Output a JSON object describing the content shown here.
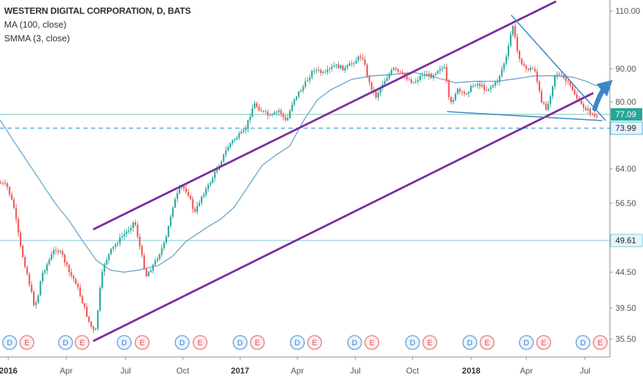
{
  "legend": {
    "title": "WESTERN DIGITAL CORPORATION, D, BATS",
    "ma": "MA (100, close)",
    "smma": "SMMA (3, close)"
  },
  "chart_data": {
    "type": "candlestick",
    "price_axis_labels": [
      "110.00",
      "90.00",
      "80.00",
      "73.99",
      "64.00",
      "56.50",
      "49.61",
      "44.50",
      "39.50",
      "35.50"
    ],
    "price_levels": [
      {
        "label": "110.00",
        "value": 110.0
      },
      {
        "label": "90.00",
        "value": 90.0
      },
      {
        "label": "80.00",
        "value": 80.0
      },
      {
        "label": "64.00",
        "value": 64.0
      },
      {
        "label": "56.50",
        "value": 56.5
      },
      {
        "label": "44.50",
        "value": 44.5
      },
      {
        "label": "39.50",
        "value": 39.5
      },
      {
        "label": "35.50",
        "value": 35.5
      }
    ],
    "time_labels": [
      {
        "label": "2016",
        "year": true
      },
      {
        "label": "Apr",
        "year": false
      },
      {
        "label": "Jul",
        "year": false
      },
      {
        "label": "Oct",
        "year": false
      },
      {
        "label": "2017",
        "year": true
      },
      {
        "label": "Apr",
        "year": false
      },
      {
        "label": "Jul",
        "year": false
      },
      {
        "label": "Oct",
        "year": false
      },
      {
        "label": "2018",
        "year": true
      },
      {
        "label": "Apr",
        "year": false
      },
      {
        "label": "Jul",
        "year": false
      }
    ],
    "current_price": {
      "label": "77.09",
      "value": 77.09,
      "color": "#26a69a"
    },
    "dashed_level": {
      "label": "73.99",
      "value": 73.99,
      "color": "#4fb0d8"
    },
    "horizontal_level": {
      "label": "49.61",
      "value": 49.61,
      "color": "#7fc8d8"
    },
    "colors": {
      "up": "#26a69a",
      "down": "#ef5350",
      "ma": "#6ea6c8",
      "channel": "#7b2fa0",
      "wedge": "#3d85c6",
      "arrow": "#3d85c6"
    },
    "events": [
      {
        "label": "D",
        "type": "dividend"
      },
      {
        "label": "E",
        "type": "earnings"
      },
      {
        "label": "D",
        "type": "dividend"
      },
      {
        "label": "E",
        "type": "earnings"
      },
      {
        "label": "D",
        "type": "dividend"
      },
      {
        "label": "E",
        "type": "earnings"
      },
      {
        "label": "D",
        "type": "dividend"
      },
      {
        "label": "E",
        "type": "earnings"
      },
      {
        "label": "D",
        "type": "dividend"
      },
      {
        "label": "E",
        "type": "earnings"
      },
      {
        "label": "D",
        "type": "dividend"
      },
      {
        "label": "E",
        "type": "earnings"
      },
      {
        "label": "D",
        "type": "dividend"
      },
      {
        "label": "E",
        "type": "earnings"
      },
      {
        "label": "D",
        "type": "dividend"
      },
      {
        "label": "E",
        "type": "earnings"
      },
      {
        "label": "D",
        "type": "dividend"
      },
      {
        "label": "E",
        "type": "earnings"
      },
      {
        "label": "D",
        "type": "dividend"
      },
      {
        "label": "E",
        "type": "earnings"
      },
      {
        "label": "D",
        "type": "dividend"
      },
      {
        "label": "E",
        "type": "earnings"
      }
    ],
    "ma_path": [
      [
        0,
        174
      ],
      [
        20,
        205
      ],
      [
        40,
        235
      ],
      [
        60,
        265
      ],
      [
        80,
        295
      ],
      [
        100,
        320
      ],
      [
        120,
        350
      ],
      [
        140,
        378
      ],
      [
        160,
        392
      ],
      [
        180,
        395
      ],
      [
        200,
        392
      ],
      [
        230,
        385
      ],
      [
        250,
        372
      ],
      [
        270,
        350
      ],
      [
        300,
        330
      ],
      [
        320,
        318
      ],
      [
        340,
        300
      ],
      [
        360,
        270
      ],
      [
        380,
        240
      ],
      [
        400,
        225
      ],
      [
        420,
        212
      ],
      [
        440,
        175
      ],
      [
        460,
        145
      ],
      [
        480,
        130
      ],
      [
        510,
        115
      ],
      [
        540,
        110
      ],
      [
        570,
        108
      ],
      [
        600,
        105
      ],
      [
        630,
        112
      ],
      [
        660,
        120
      ],
      [
        690,
        118
      ],
      [
        720,
        118
      ],
      [
        750,
        114
      ],
      [
        775,
        110
      ],
      [
        800,
        110
      ],
      [
        830,
        112
      ],
      [
        850,
        118
      ],
      [
        865,
        125
      ]
    ],
    "channel_lines": [
      {
        "from": [
          135,
          333
        ],
        "to": [
          806,
          2
        ]
      },
      {
        "from": [
          135,
          495
        ],
        "to": [
          860,
          135
        ]
      }
    ],
    "wedge_lines": [
      {
        "from": [
          741,
          22
        ],
        "to": [
          878,
          175
        ]
      },
      {
        "from": [
          648,
          162
        ],
        "to": [
          873,
          175
        ]
      }
    ],
    "price_path": [
      [
        0,
        265
      ],
      [
        10,
        270
      ],
      [
        20,
        300
      ],
      [
        30,
        360
      ],
      [
        40,
        400
      ],
      [
        50,
        445
      ],
      [
        55,
        430
      ],
      [
        60,
        400
      ],
      [
        70,
        380
      ],
      [
        80,
        360
      ],
      [
        90,
        370
      ],
      [
        100,
        395
      ],
      [
        110,
        410
      ],
      [
        120,
        440
      ],
      [
        130,
        470
      ],
      [
        138,
        485
      ],
      [
        145,
        420
      ],
      [
        150,
        385
      ],
      [
        160,
        365
      ],
      [
        175,
        345
      ],
      [
        185,
        335
      ],
      [
        195,
        320
      ],
      [
        205,
        370
      ],
      [
        212,
        400
      ],
      [
        225,
        380
      ],
      [
        240,
        350
      ],
      [
        250,
        300
      ],
      [
        262,
        270
      ],
      [
        272,
        278
      ],
      [
        282,
        310
      ],
      [
        292,
        285
      ],
      [
        302,
        270
      ],
      [
        312,
        250
      ],
      [
        322,
        230
      ],
      [
        332,
        210
      ],
      [
        342,
        200
      ],
      [
        355,
        190
      ],
      [
        368,
        150
      ],
      [
        378,
        160
      ],
      [
        392,
        170
      ],
      [
        405,
        160
      ],
      [
        415,
        178
      ],
      [
        425,
        145
      ],
      [
        440,
        125
      ],
      [
        455,
        100
      ],
      [
        470,
        108
      ],
      [
        485,
        95
      ],
      [
        500,
        100
      ],
      [
        512,
        90
      ],
      [
        525,
        80
      ],
      [
        535,
        120
      ],
      [
        545,
        140
      ],
      [
        555,
        120
      ],
      [
        570,
        100
      ],
      [
        585,
        110
      ],
      [
        600,
        120
      ],
      [
        612,
        108
      ],
      [
        625,
        110
      ],
      [
        638,
        98
      ],
      [
        645,
        100
      ],
      [
        652,
        155
      ],
      [
        662,
        130
      ],
      [
        672,
        138
      ],
      [
        690,
        120
      ],
      [
        705,
        130
      ],
      [
        720,
        120
      ],
      [
        735,
        80
      ],
      [
        743,
        35
      ],
      [
        750,
        75
      ],
      [
        760,
        100
      ],
      [
        775,
        100
      ],
      [
        785,
        150
      ],
      [
        793,
        158
      ],
      [
        805,
        105
      ],
      [
        818,
        115
      ],
      [
        830,
        130
      ],
      [
        840,
        150
      ],
      [
        852,
        160
      ],
      [
        865,
        172
      ]
    ]
  }
}
